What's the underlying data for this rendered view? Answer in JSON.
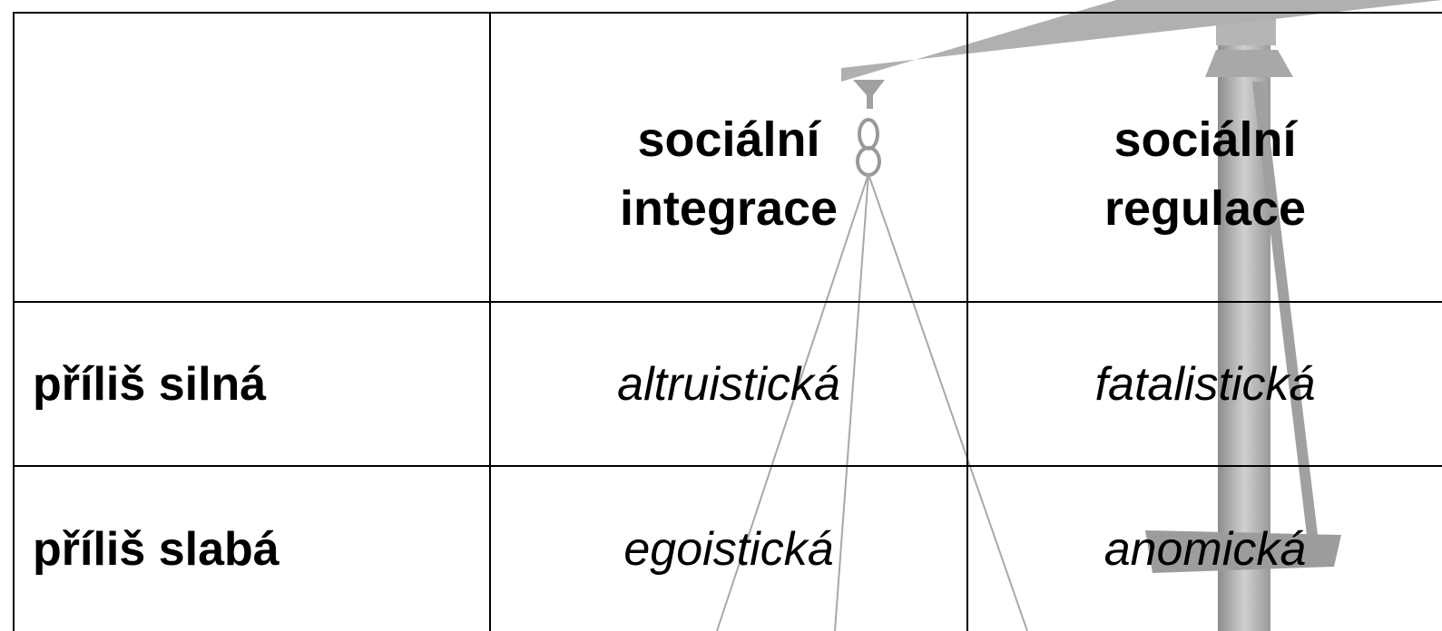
{
  "table": {
    "header": [
      "sociální integrace",
      "sociální regulace"
    ],
    "rows": [
      {
        "label": "příliš silná",
        "cells": [
          "altruistická",
          "fatalistická"
        ]
      },
      {
        "label": "příliš slabá",
        "cells": [
          "egoistická",
          "anomická"
        ]
      }
    ]
  }
}
